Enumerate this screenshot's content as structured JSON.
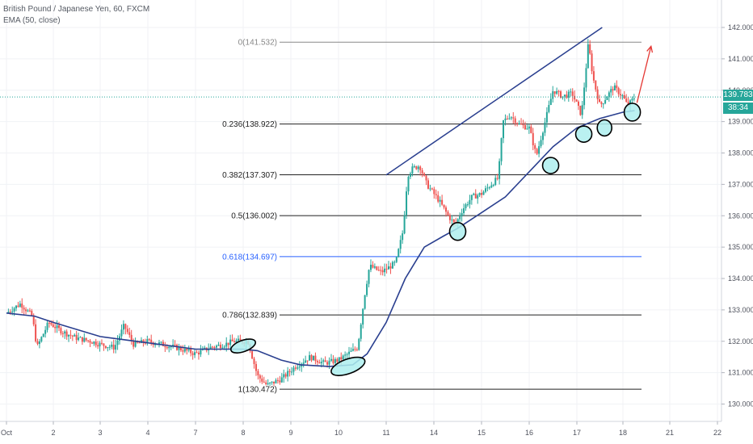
{
  "header": {
    "title": "British Pound / Japanese Yen, 60, FXCM",
    "indicator": "EMA (50, close)"
  },
  "price_badge": {
    "price": "139.783",
    "countdown": "38:34",
    "color": "#26a69a"
  },
  "chart_data": {
    "type": "candlestick",
    "title": "British Pound / Japanese Yen, 60, FXCM",
    "indicator": "EMA (50, close)",
    "ylim": [
      129.6,
      142.6
    ],
    "y_ticks": [
      "130.000",
      "131.000",
      "132.000",
      "133.000",
      "134.000",
      "135.000",
      "136.000",
      "137.000",
      "138.000",
      "139.000",
      "140.000",
      "141.000",
      "142.000"
    ],
    "x_ticks": [
      {
        "label": "Oct",
        "day": 0
      },
      {
        "label": "2",
        "day": 1
      },
      {
        "label": "3",
        "day": 2
      },
      {
        "label": "4",
        "day": 3
      },
      {
        "label": "7",
        "day": 4
      },
      {
        "label": "8",
        "day": 5
      },
      {
        "label": "9",
        "day": 6
      },
      {
        "label": "10",
        "day": 7
      },
      {
        "label": "11",
        "day": 8
      },
      {
        "label": "14",
        "day": 9
      },
      {
        "label": "15",
        "day": 10
      },
      {
        "label": "16",
        "day": 11
      },
      {
        "label": "17",
        "day": 12
      },
      {
        "label": "18",
        "day": 13
      },
      {
        "label": "21",
        "day": 14
      },
      {
        "label": "22",
        "day": 15
      }
    ],
    "price_path": [
      [
        0.0,
        132.9
      ],
      [
        0.3,
        133.2
      ],
      [
        0.55,
        132.8
      ],
      [
        0.65,
        131.8
      ],
      [
        0.9,
        132.6
      ],
      [
        1.2,
        132.3
      ],
      [
        1.5,
        132.1
      ],
      [
        1.8,
        132.0
      ],
      [
        2.0,
        131.9
      ],
      [
        2.3,
        131.8
      ],
      [
        2.5,
        132.5
      ],
      [
        2.7,
        131.9
      ],
      [
        3.0,
        132.0
      ],
      [
        3.3,
        131.9
      ],
      [
        3.6,
        131.8
      ],
      [
        3.8,
        131.7
      ],
      [
        4.0,
        131.6
      ],
      [
        4.3,
        131.8
      ],
      [
        4.6,
        131.9
      ],
      [
        4.8,
        132.0
      ],
      [
        5.1,
        132.0
      ],
      [
        5.3,
        130.9
      ],
      [
        5.5,
        130.6
      ],
      [
        5.8,
        130.8
      ],
      [
        6.1,
        131.2
      ],
      [
        6.4,
        131.5
      ],
      [
        6.7,
        131.3
      ],
      [
        7.0,
        131.4
      ],
      [
        7.2,
        131.6
      ],
      [
        7.4,
        131.8
      ],
      [
        7.55,
        133.5
      ],
      [
        7.65,
        134.4
      ],
      [
        7.9,
        134.2
      ],
      [
        8.2,
        134.5
      ],
      [
        8.35,
        135.5
      ],
      [
        8.45,
        137.3
      ],
      [
        8.55,
        137.5
      ],
      [
        8.7,
        137.6
      ],
      [
        8.85,
        137.0
      ],
      [
        9.1,
        136.5
      ],
      [
        9.3,
        136.0
      ],
      [
        9.45,
        135.7
      ],
      [
        9.6,
        136.2
      ],
      [
        9.8,
        136.6
      ],
      [
        10.0,
        136.7
      ],
      [
        10.2,
        137.0
      ],
      [
        10.35,
        137.2
      ],
      [
        10.45,
        139.0
      ],
      [
        10.6,
        139.2
      ],
      [
        10.8,
        138.9
      ],
      [
        11.0,
        138.8
      ],
      [
        11.15,
        137.9
      ],
      [
        11.3,
        138.8
      ],
      [
        11.5,
        140.0
      ],
      [
        11.7,
        139.8
      ],
      [
        11.9,
        139.9
      ],
      [
        12.1,
        139.2
      ],
      [
        12.25,
        141.5
      ],
      [
        12.35,
        140.4
      ],
      [
        12.5,
        139.5
      ],
      [
        12.65,
        139.8
      ],
      [
        12.8,
        140.1
      ],
      [
        13.0,
        139.8
      ],
      [
        13.1,
        139.5
      ],
      [
        13.25,
        139.78
      ]
    ],
    "ema_path": [
      [
        0.0,
        132.9
      ],
      [
        0.6,
        132.8
      ],
      [
        1.0,
        132.6
      ],
      [
        2.0,
        132.15
      ],
      [
        3.0,
        131.95
      ],
      [
        4.0,
        131.75
      ],
      [
        5.0,
        131.75
      ],
      [
        5.3,
        131.7
      ],
      [
        5.8,
        131.4
      ],
      [
        6.2,
        131.25
      ],
      [
        6.8,
        131.2
      ],
      [
        7.3,
        131.25
      ],
      [
        7.6,
        131.6
      ],
      [
        8.0,
        132.6
      ],
      [
        8.4,
        134.0
      ],
      [
        8.8,
        135.0
      ],
      [
        9.2,
        135.35
      ],
      [
        9.5,
        135.6
      ],
      [
        10.0,
        136.1
      ],
      [
        10.5,
        136.6
      ],
      [
        11.0,
        137.4
      ],
      [
        11.5,
        138.2
      ],
      [
        12.0,
        138.8
      ],
      [
        12.5,
        139.1
      ],
      [
        13.0,
        139.3
      ],
      [
        13.25,
        139.35
      ]
    ],
    "ema_color": "#2a3f8f",
    "fib_levels": [
      {
        "ratio": "0",
        "price": 141.532,
        "label": "0(141.532)",
        "color": "#888888"
      },
      {
        "ratio": "0.236",
        "price": 138.922,
        "label": "0.236(138.922)",
        "color": "#222222"
      },
      {
        "ratio": "0.382",
        "price": 137.307,
        "label": "0.382(137.307)",
        "color": "#222222"
      },
      {
        "ratio": "0.5",
        "price": 136.002,
        "label": "0.5(136.002)",
        "color": "#222222"
      },
      {
        "ratio": "0.618",
        "price": 134.697,
        "label": "0.618(134.697)",
        "color": "#2962ff"
      },
      {
        "ratio": "0.786",
        "price": 132.839,
        "label": "0.786(132.839)",
        "color": "#222222"
      },
      {
        "ratio": "1",
        "price": 130.472,
        "label": "1(130.472)",
        "color": "#222222"
      }
    ],
    "trendline": {
      "from": [
        8.0,
        137.3
      ],
      "to": [
        12.55,
        142.0
      ],
      "color": "#2a3f8f"
    },
    "projection_arrow": {
      "from": [
        13.3,
        139.6
      ],
      "to": [
        13.6,
        141.4
      ],
      "color": "#e53935"
    },
    "touch_markers": [
      [
        5.0,
        131.85
      ],
      [
        7.2,
        131.2
      ],
      [
        9.5,
        135.5
      ],
      [
        11.45,
        137.6
      ],
      [
        12.15,
        138.6
      ],
      [
        12.6,
        138.8
      ],
      [
        13.2,
        139.3
      ]
    ],
    "current_price": 139.783,
    "bull_color": "#26a69a",
    "bear_color": "#ef5350"
  }
}
